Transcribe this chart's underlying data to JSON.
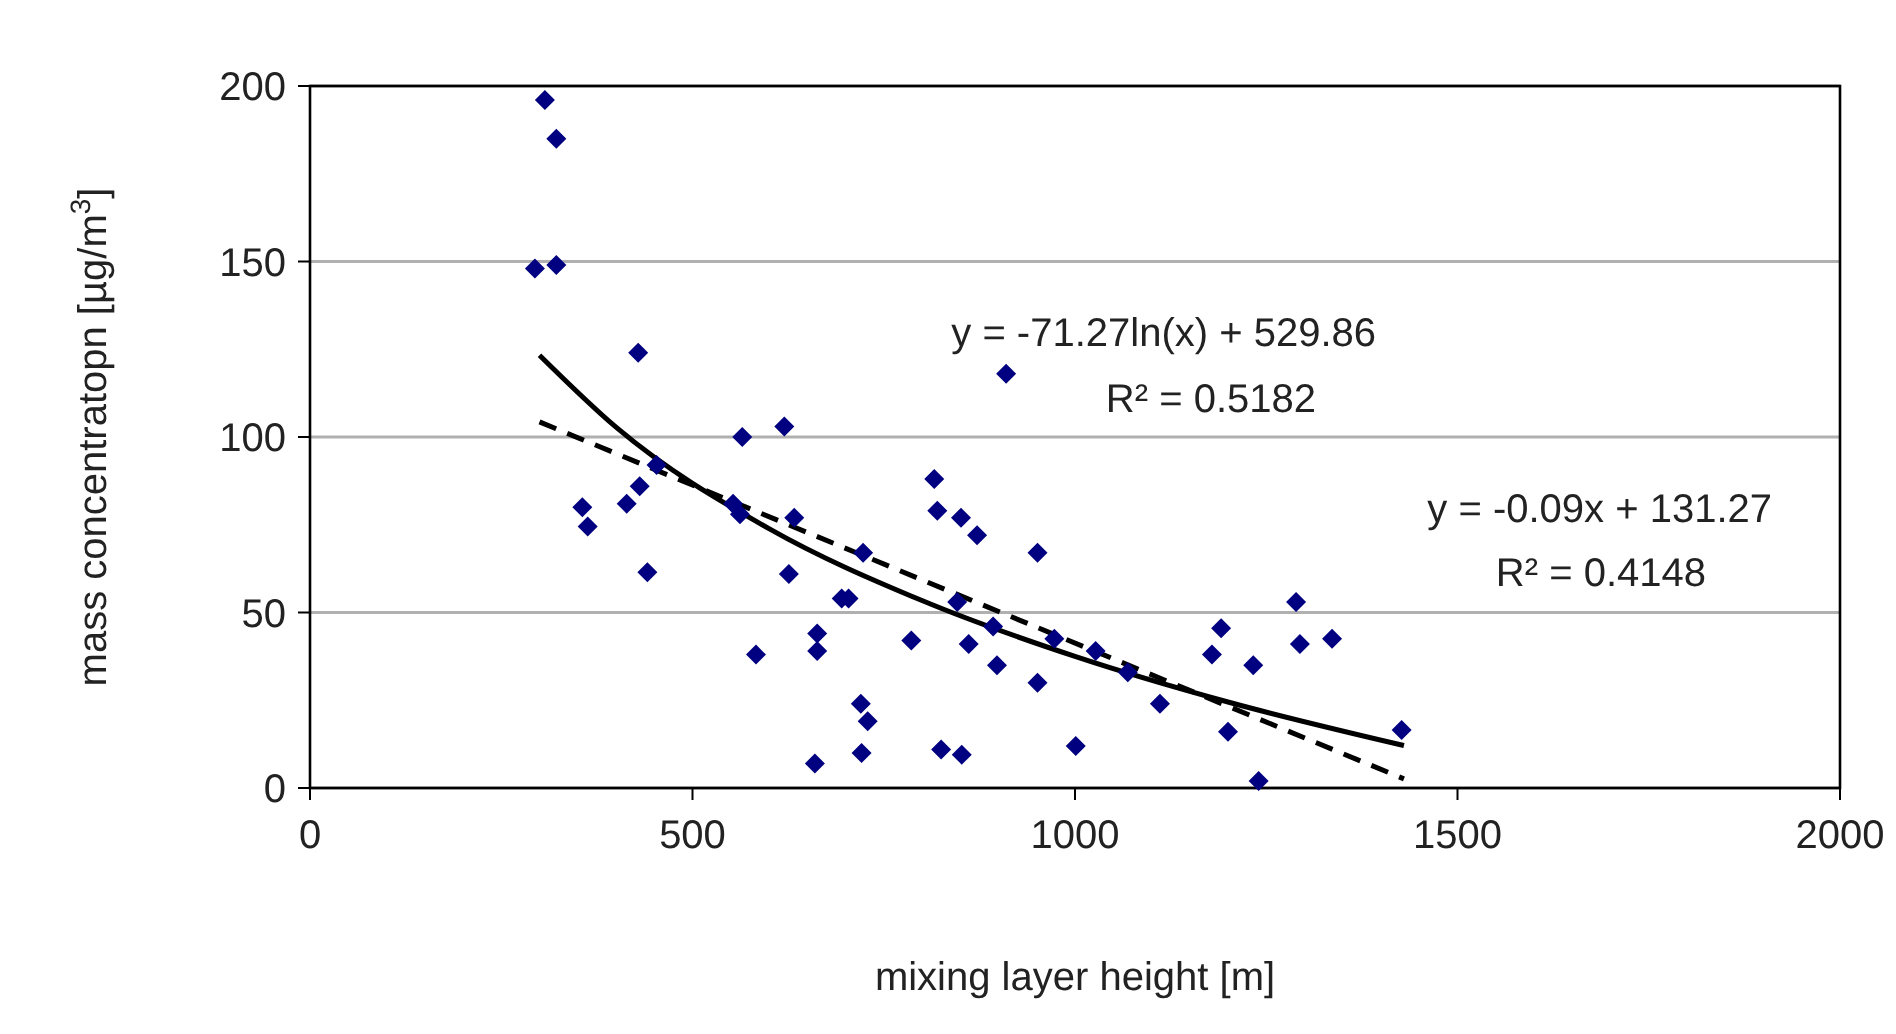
{
  "chart_data": {
    "type": "scatter",
    "xlabel": "mixing layer height [m]",
    "ylabel": "mass concentratopn [µg/m$^{3}$]",
    "xlim": [
      0,
      2000
    ],
    "xticks": [
      0,
      500,
      1000,
      1500,
      2000
    ],
    "ylim": [
      0,
      200
    ],
    "yticks": [
      0,
      50,
      100,
      150,
      200
    ],
    "grid": "y",
    "annotations": [
      "y = -71.27ln(x) + 529.86",
      "R² = 0.5182",
      "y = -0.09x + 131.27",
      "R² = 0.4148"
    ],
    "series": [
      {
        "color": "#000080",
        "marker": "diamond",
        "x": [
          307,
          322,
          294,
          322,
          429,
          356,
          363,
          414,
          431,
          453,
          441,
          565,
          620,
          553,
          562,
          633,
          626,
          583,
          663,
          663,
          695,
          704,
          720,
          729,
          660,
          721,
          723,
          786,
          816,
          820,
          851,
          872,
          910,
          846,
          861,
          898,
          893,
          951,
          951,
          825,
          852,
          1001,
          973,
          1027,
          1069,
          1111,
          1289,
          1191,
          1179,
          1233,
          1294,
          1336,
          1200,
          1427,
          1240
        ],
        "values": [
          196,
          185,
          148,
          149,
          124,
          80,
          74.5,
          81,
          86,
          92,
          61.5,
          100,
          103,
          81,
          78,
          77,
          61,
          38,
          44,
          39,
          54,
          54,
          24,
          19,
          7,
          10,
          67,
          42,
          88,
          79,
          77,
          72,
          118,
          53,
          41,
          35,
          46,
          67,
          30,
          11,
          9.5,
          12,
          42.5,
          39,
          33,
          24,
          53,
          45.5,
          38,
          35,
          41,
          42.5,
          16,
          16.5,
          2
        ]
      },
      {
        "type": "line",
        "color": "#000000",
        "marker": "none",
        "line_style": "solid",
        "x": [
          300,
          400,
          600,
          800,
          1000,
          1200,
          1430
        ],
        "values": [
          123.3,
          102.8,
          73.9,
          53.4,
          37.5,
          24.5,
          12.1
        ]
      },
      {
        "type": "line",
        "color": "#000000",
        "marker": "none",
        "line_style": "dashed",
        "x": [
          300,
          1430
        ],
        "values": [
          104.3,
          2.6
        ]
      }
    ]
  }
}
